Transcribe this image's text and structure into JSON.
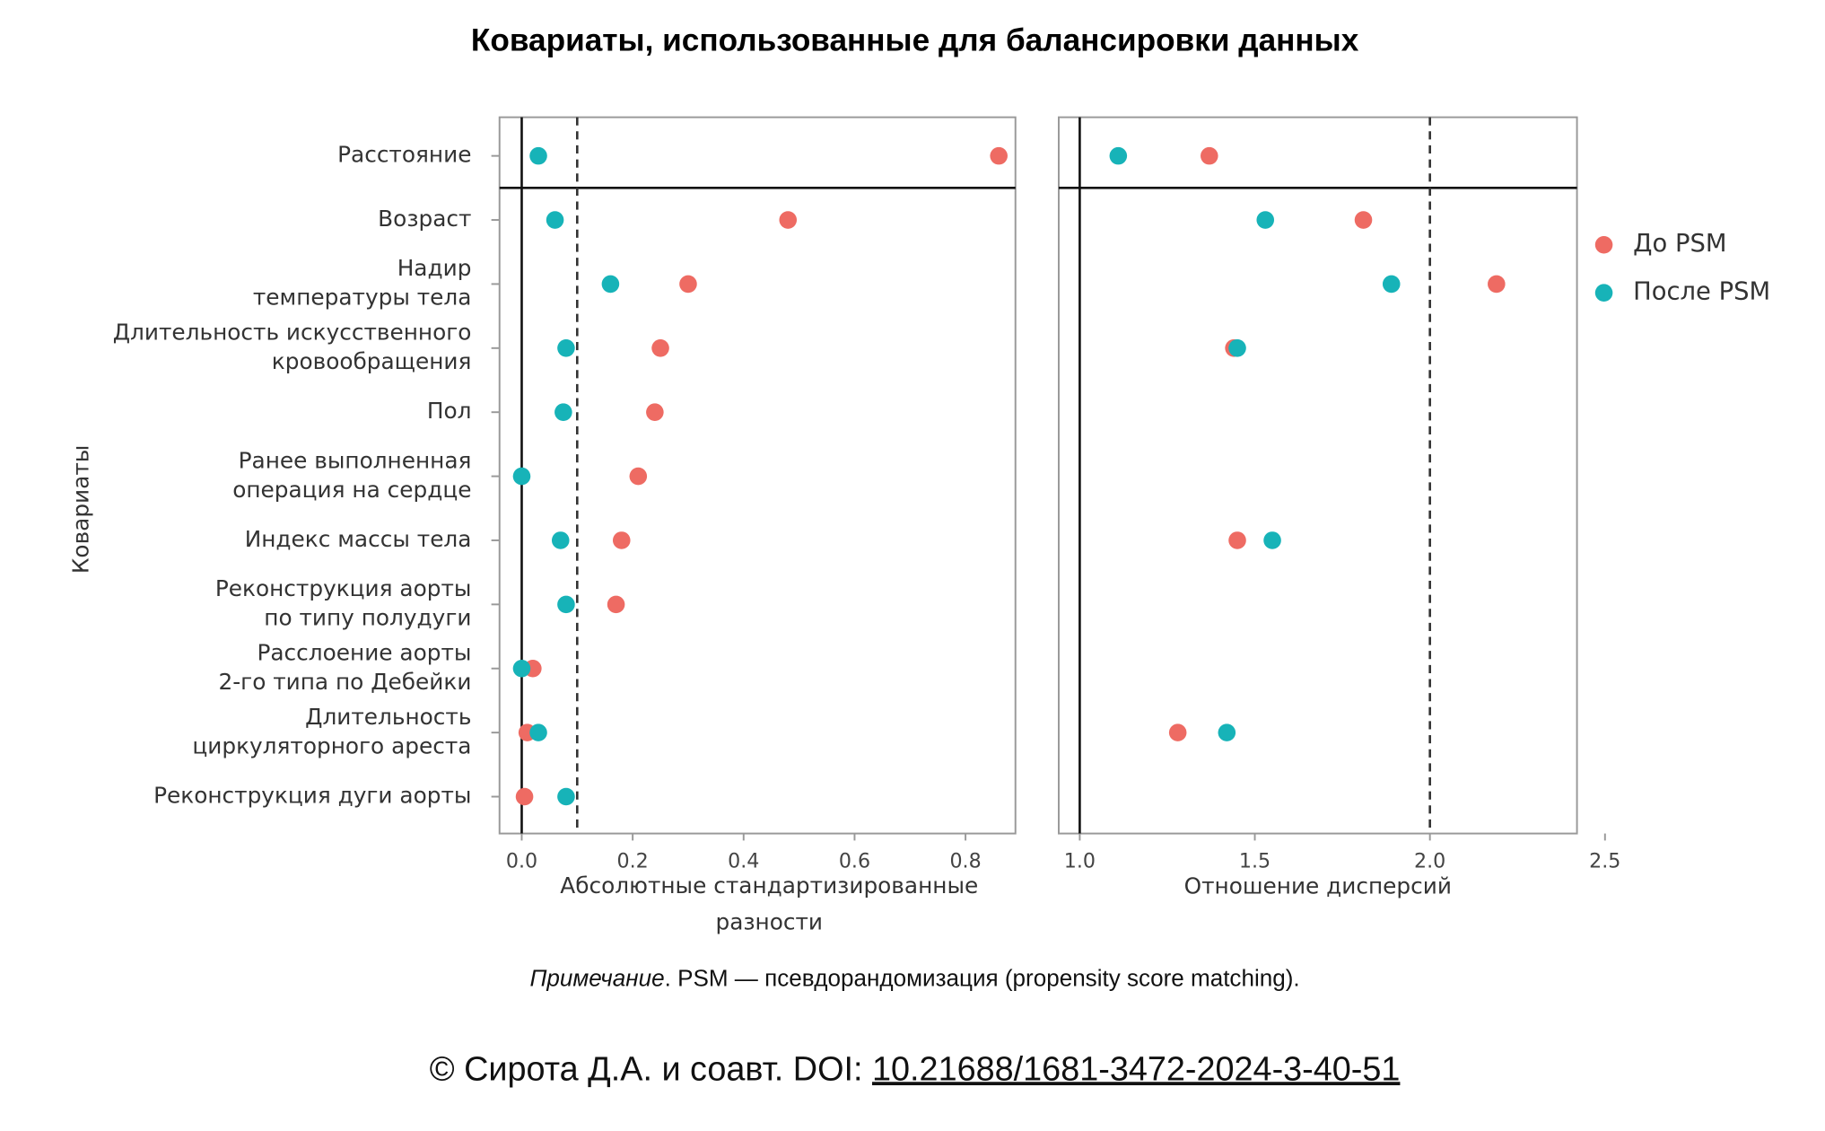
{
  "chart_data": {
    "type": "dot",
    "title": "Ковариаты, использованные для балансировки данных",
    "ylabel": "Ковариаты",
    "categories": [
      "Расстояние",
      "Возраст",
      "Надир\nтемпературы тела",
      "Длительность искусственного\nкровообращения",
      "Пол",
      "Ранее выполненная\nоперация на сердце",
      "Индекс массы тела",
      "Реконструкция аорты\nпо типу полудуги",
      "Расслоение аорты\n2-го типа по Дебейки",
      "Длительность\nциркуляторного ареста",
      "Реконструкция дуги аорты"
    ],
    "series": [
      {
        "name": "До PSM",
        "color": "#ee6b63"
      },
      {
        "name": "После PSM",
        "color": "#17b3b8"
      }
    ],
    "panels": [
      {
        "xlabel": "Абсолютные стандартизированные\nразности",
        "xlim": [
          -0.04,
          0.89
        ],
        "xticks": [
          {
            "value": 0,
            "label": "0.0"
          },
          0.2,
          0.4,
          0.6,
          0.8
        ],
        "zero_line": 0,
        "ref_line": 0.1,
        "series": [
          {
            "values": [
              0.86,
              0.48,
              0.3,
              0.25,
              0.24,
              0.21,
              0.18,
              0.17,
              0.02,
              0.01,
              0.005
            ]
          },
          {
            "values": [
              0.03,
              0.06,
              0.16,
              0.08,
              0.075,
              0.0,
              0.07,
              0.08,
              0.0,
              0.03,
              0.08
            ]
          }
        ]
      },
      {
        "xlabel": "Отношение дисперсий",
        "xlim": [
          0.94,
          2.42
        ],
        "xticks": [
          {
            "value": 1,
            "label": "1.0"
          },
          1.5,
          {
            "value": 2,
            "label": "2.0"
          },
          2.5
        ],
        "zero_line": 1,
        "ref_line": 2,
        "series": [
          {
            "values": [
              1.37,
              1.81,
              2.19,
              1.44,
              null,
              null,
              1.45,
              null,
              null,
              1.28,
              null
            ]
          },
          {
            "values": [
              1.11,
              1.53,
              1.89,
              1.45,
              null,
              null,
              1.55,
              null,
              null,
              1.42,
              null
            ]
          }
        ]
      }
    ]
  },
  "footer": {
    "note_label": "Примечание",
    "note_text": ". PSM — псевдорандомизация (propensity score matching).",
    "copyright": "© Сирота Д.А. и соавт. DOI: ",
    "doi": "10.21688/1681-3472-2024-3-40-51"
  }
}
